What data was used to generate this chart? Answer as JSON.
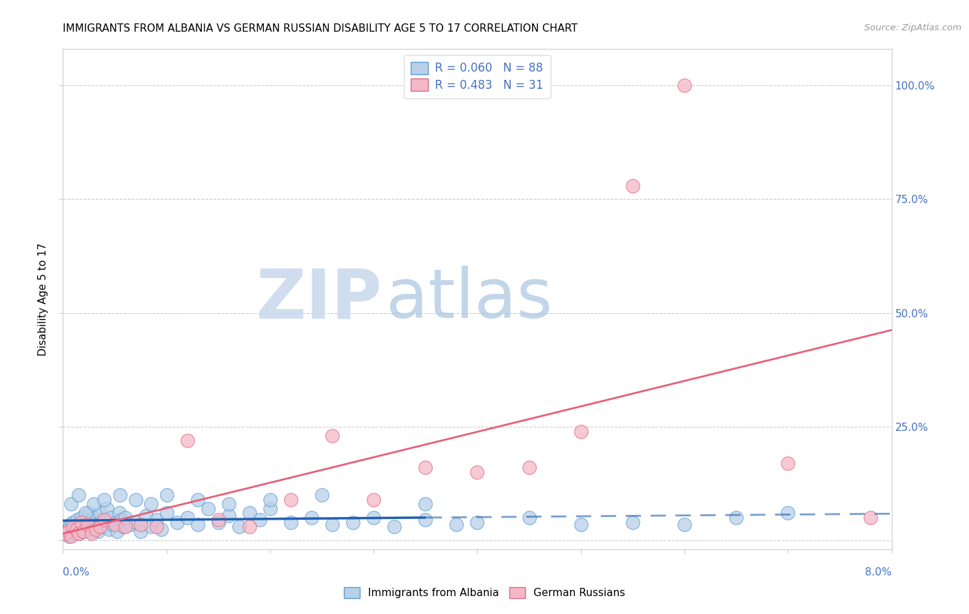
{
  "title": "IMMIGRANTS FROM ALBANIA VS GERMAN RUSSIAN DISABILITY AGE 5 TO 17 CORRELATION CHART",
  "source": "Source: ZipAtlas.com",
  "ylabel": "Disability Age 5 to 17",
  "watermark_zip": "ZIP",
  "watermark_atlas": "atlas",
  "xlim": [
    0.0,
    8.0
  ],
  "ylim": [
    -2.0,
    108.0
  ],
  "ytick_positions": [
    0,
    25,
    50,
    75,
    100
  ],
  "ytick_labels": [
    "",
    "25.0%",
    "50.0%",
    "75.0%",
    "100.0%"
  ],
  "series": [
    {
      "name": "Immigrants from Albania",
      "color": "#b8d0e8",
      "edge_color": "#5b9bd5",
      "R": 0.06,
      "N": 88,
      "trend_color": "#2060b0",
      "trend_style": "solid_then_dashed",
      "x": [
        0.02,
        0.03,
        0.04,
        0.05,
        0.06,
        0.07,
        0.08,
        0.09,
        0.1,
        0.11,
        0.12,
        0.13,
        0.14,
        0.15,
        0.16,
        0.17,
        0.18,
        0.19,
        0.2,
        0.22,
        0.24,
        0.25,
        0.26,
        0.27,
        0.28,
        0.3,
        0.32,
        0.34,
        0.36,
        0.38,
        0.4,
        0.42,
        0.44,
        0.46,
        0.48,
        0.5,
        0.52,
        0.54,
        0.56,
        0.58,
        0.6,
        0.65,
        0.7,
        0.75,
        0.8,
        0.85,
        0.9,
        0.95,
        1.0,
        1.1,
        1.2,
        1.3,
        1.4,
        1.5,
        1.6,
        1.7,
        1.8,
        1.9,
        2.0,
        2.2,
        2.4,
        2.6,
        2.8,
        3.0,
        3.2,
        3.5,
        3.8,
        4.0,
        4.5,
        5.0,
        5.5,
        6.0,
        6.5,
        7.0,
        0.08,
        0.15,
        0.22,
        0.3,
        0.4,
        0.55,
        0.7,
        0.85,
        1.0,
        1.3,
        1.6,
        2.0,
        2.5,
        3.5
      ],
      "y": [
        2.0,
        1.5,
        3.0,
        2.5,
        1.0,
        3.5,
        2.0,
        4.0,
        2.5,
        1.5,
        3.0,
        2.0,
        4.5,
        3.0,
        1.5,
        2.5,
        5.0,
        2.0,
        3.5,
        4.0,
        2.5,
        6.0,
        3.0,
        2.0,
        4.5,
        5.0,
        3.5,
        2.0,
        6.0,
        4.0,
        3.0,
        7.0,
        2.5,
        5.0,
        3.5,
        4.0,
        2.0,
        6.0,
        4.5,
        3.0,
        5.0,
        3.5,
        4.0,
        2.0,
        5.5,
        3.0,
        4.5,
        2.5,
        6.0,
        4.0,
        5.0,
        3.5,
        7.0,
        4.0,
        5.5,
        3.0,
        6.0,
        4.5,
        7.0,
        4.0,
        5.0,
        3.5,
        4.0,
        5.0,
        3.0,
        4.5,
        3.5,
        4.0,
        5.0,
        3.5,
        4.0,
        3.5,
        5.0,
        6.0,
        8.0,
        10.0,
        6.0,
        8.0,
        9.0,
        10.0,
        9.0,
        8.0,
        10.0,
        9.0,
        8.0,
        9.0,
        10.0,
        8.0
      ]
    },
    {
      "name": "German Russians",
      "color": "#f4b8c8",
      "edge_color": "#e06880",
      "R": 0.483,
      "N": 31,
      "trend_color": "#e8607a",
      "trend_style": "solid",
      "x": [
        0.02,
        0.05,
        0.08,
        0.1,
        0.13,
        0.15,
        0.18,
        0.2,
        0.24,
        0.28,
        0.32,
        0.36,
        0.4,
        0.5,
        0.6,
        0.75,
        0.9,
        1.2,
        1.5,
        1.8,
        2.2,
        2.6,
        3.0,
        3.5,
        4.0,
        4.5,
        5.0,
        5.5,
        6.0,
        7.0,
        7.8
      ],
      "y": [
        1.5,
        2.0,
        1.0,
        3.0,
        2.5,
        1.5,
        4.0,
        2.0,
        3.5,
        1.5,
        2.5,
        3.0,
        4.5,
        3.5,
        3.0,
        3.5,
        3.0,
        22.0,
        4.5,
        3.0,
        9.0,
        23.0,
        9.0,
        16.0,
        15.0,
        16.0,
        24.0,
        78.0,
        100.0,
        17.0,
        5.0
      ]
    }
  ],
  "legend_albania": "R = 0.060   N = 88",
  "legend_german": "R = 0.483   N = 31",
  "grid_color": "#cccccc",
  "background_color": "#ffffff",
  "title_fontsize": 11,
  "axis_label_color": "#4472c4"
}
